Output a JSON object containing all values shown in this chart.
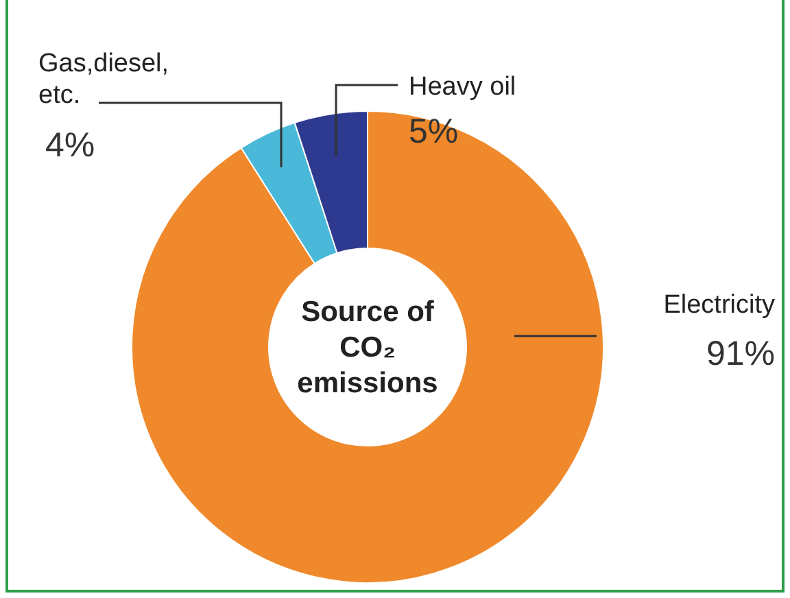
{
  "chart_data": {
    "type": "donut",
    "title": "Source of CO₂ emissions",
    "categories": [
      "Electricity",
      "Gas,diesel, etc.",
      "Heavy oil"
    ],
    "values": [
      91,
      4,
      5
    ],
    "colors": [
      "#f0892b",
      "#4ab8d8",
      "#2e3a8f"
    ],
    "value_labels": [
      "91%",
      "4%",
      "5%"
    ]
  }
}
